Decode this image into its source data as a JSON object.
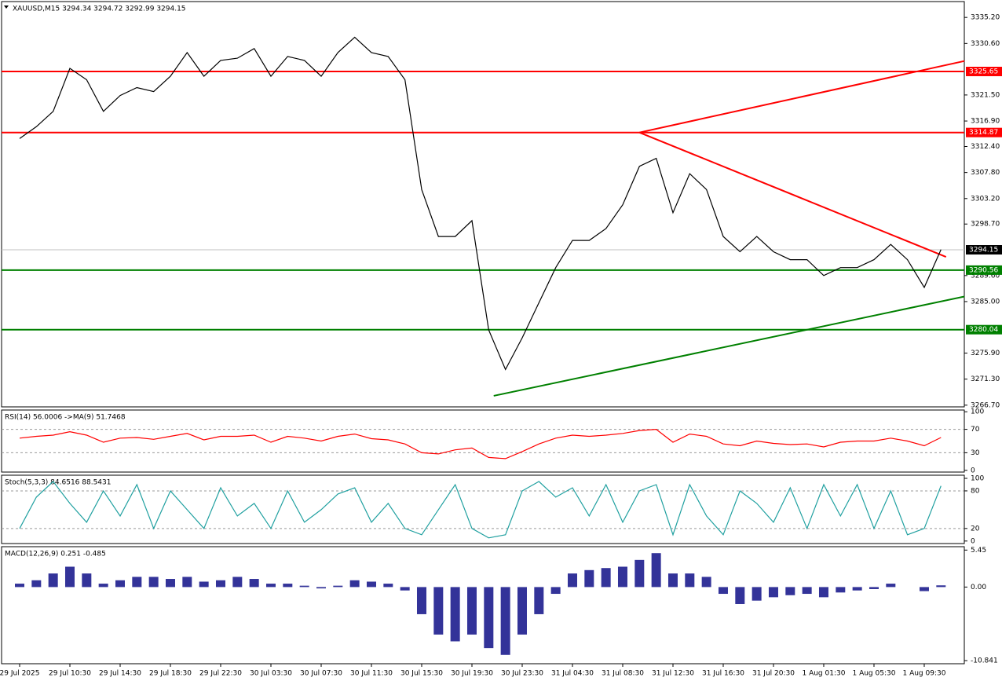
{
  "chart_data": [
    {
      "type": "line",
      "title": "XAUUSD,M15  3294.34 3294.72 3292.99 3294.15",
      "categories": [
        "29 Jul 2025",
        null,
        null,
        "29 Jul 10:30",
        null,
        null,
        "29 Jul 14:30",
        null,
        null,
        "29 Jul 18:30",
        null,
        null,
        "29 Jul 22:30",
        null,
        null,
        "30 Jul 03:30",
        null,
        null,
        "30 Jul 07:30",
        null,
        null,
        "30 Jul 11:30",
        null,
        null,
        "30 Jul 15:30",
        null,
        null,
        "30 Jul 19:30",
        null,
        null,
        "30 Jul 23:30",
        null,
        null,
        "31 Jul 04:30",
        null,
        null,
        "31 Jul 08:30",
        null,
        null,
        "31 Jul 12:30",
        null,
        null,
        "31 Jul 16:30",
        null,
        null,
        "31 Jul 20:30",
        null,
        null,
        "1 Aug 01:30",
        null,
        null,
        "1 Aug 05:30",
        null,
        null,
        "1 Aug 09:30",
        null
      ],
      "series": [
        {
          "name": "XAUUSD",
          "color": "#000000",
          "values": [
            3313.8,
            3315.9,
            3318.6,
            3326.2,
            3324.2,
            3318.6,
            3321.4,
            3322.8,
            3322.1,
            3324.8,
            3329.0,
            3324.8,
            3327.6,
            3328.0,
            3329.7,
            3324.8,
            3328.3,
            3327.6,
            3324.8,
            3329.0,
            3331.7,
            3329.0,
            3328.3,
            3324.2,
            3304.8,
            3296.5,
            3296.5,
            3299.3,
            3280.0,
            3273.0,
            3278.6,
            3284.8,
            3291.0,
            3295.8,
            3295.8,
            3297.9,
            3302.1,
            3308.9,
            3310.3,
            3300.7,
            3307.6,
            3304.8,
            3296.5,
            3293.8,
            3296.5,
            3293.8,
            3292.4,
            3292.4,
            3289.6,
            3291.0,
            3291.0,
            3292.4,
            3295.1,
            3292.4,
            3287.5,
            3294.2
          ]
        }
      ],
      "ylim": [
        3266.4,
        3338.0
      ],
      "yticks": [
        {
          "value": 3335.2,
          "label": "3335.20"
        },
        {
          "value": 3330.6,
          "label": "3330.60"
        },
        {
          "value": 3321.5,
          "label": "3321.50"
        },
        {
          "value": 3316.9,
          "label": "3316.90"
        },
        {
          "value": 3312.4,
          "label": "3312.40"
        },
        {
          "value": 3307.8,
          "label": "3307.80"
        },
        {
          "value": 3303.2,
          "label": "3303.20"
        },
        {
          "value": 3298.7,
          "label": "3298.70"
        },
        {
          "value": 3289.6,
          "label": "3289.60"
        },
        {
          "value": 3285.0,
          "label": "3285.00"
        },
        {
          "value": 3275.9,
          "label": "3275.90"
        },
        {
          "value": 3271.3,
          "label": "3271.30"
        },
        {
          "value": 3266.7,
          "label": "3266.70"
        }
      ],
      "levels": [
        {
          "value": 3325.65,
          "color": "#ff0000"
        },
        {
          "value": 3314.87,
          "color": "#ff0000"
        },
        {
          "value": 3290.56,
          "color": "#008000"
        },
        {
          "value": 3280.04,
          "color": "#008000"
        },
        {
          "value": 3294.15,
          "color": "#c0c0c0"
        }
      ],
      "trendlines": [
        {
          "color": "#ff0000",
          "x": [
            37.0,
            55.3
          ],
          "y": [
            3314.87,
            3292.9
          ]
        },
        {
          "color": "#ff0000",
          "x": [
            37.0,
            56.4
          ],
          "y": [
            3314.87,
            3327.5
          ]
        },
        {
          "color": "#008000",
          "x": [
            28.3,
            56.4
          ],
          "y": [
            3268.35,
            3285.9
          ]
        }
      ]
    },
    {
      "type": "line",
      "title": "RSI(14) 56.0006  ->MA(9) 51.7468",
      "series": [
        {
          "name": "RSI(14)",
          "color": "#ff0000",
          "values": [
            55,
            58,
            60,
            66,
            60,
            48,
            55,
            56,
            53,
            58,
            63,
            52,
            58,
            58,
            60,
            48,
            58,
            55,
            50,
            58,
            62,
            54,
            52,
            45,
            30,
            28,
            35,
            38,
            22,
            20,
            32,
            45,
            55,
            60,
            58,
            60,
            63,
            68,
            70,
            48,
            62,
            58,
            45,
            42,
            50,
            46,
            44,
            45,
            40,
            48,
            50,
            50,
            55,
            50,
            42,
            56
          ]
        }
      ],
      "ylim": [
        -3,
        103
      ],
      "yticks": [
        100,
        70,
        30,
        0
      ],
      "levels_dashed": [
        70,
        30
      ]
    },
    {
      "type": "line",
      "title": "Stoch(5,3,3) 84.6516 88.5431",
      "series": [
        {
          "name": "Stoch(5,3,3)",
          "color": "#20a0a0",
          "values": [
            20,
            70,
            95,
            60,
            30,
            80,
            40,
            90,
            20,
            80,
            50,
            20,
            85,
            40,
            60,
            20,
            80,
            30,
            50,
            75,
            85,
            30,
            60,
            20,
            10,
            50,
            90,
            20,
            5,
            10,
            80,
            95,
            70,
            85,
            40,
            90,
            30,
            80,
            90,
            10,
            90,
            40,
            10,
            80,
            60,
            30,
            85,
            20,
            90,
            40,
            90,
            20,
            80,
            10,
            20,
            88
          ]
        }
      ],
      "ylim": [
        -4,
        105
      ],
      "yticks": [
        100,
        80,
        20,
        0
      ],
      "levels_dashed": [
        80,
        20
      ]
    },
    {
      "type": "bar",
      "title": "MACD(12,26,9) 0.251 -0.485",
      "series": [
        {
          "name": "MACD",
          "color": "#000080",
          "values": [
            0.5,
            1,
            2,
            3,
            2,
            0.5,
            1,
            1.5,
            1.5,
            1.2,
            1.5,
            0.8,
            1,
            1.5,
            1.2,
            0.5,
            0.5,
            0.2,
            -0.2,
            0.2,
            1,
            0.8,
            0.5,
            -0.5,
            -4,
            -7,
            -8,
            -7,
            -9,
            -10,
            -7,
            -4,
            -1,
            2,
            2.5,
            2.8,
            3,
            4,
            5,
            2,
            2,
            1.5,
            -1,
            -2.5,
            -2,
            -1.5,
            -1.2,
            -1,
            -1.5,
            -0.8,
            -0.5,
            -0.3,
            0.5,
            0,
            -0.6,
            0.25
          ]
        }
      ],
      "ylim": [
        -11.3,
        5.95
      ],
      "yticks": [
        5.45,
        {
          "value": 0,
          "label": "0.00"
        },
        -10.841
      ]
    }
  ]
}
